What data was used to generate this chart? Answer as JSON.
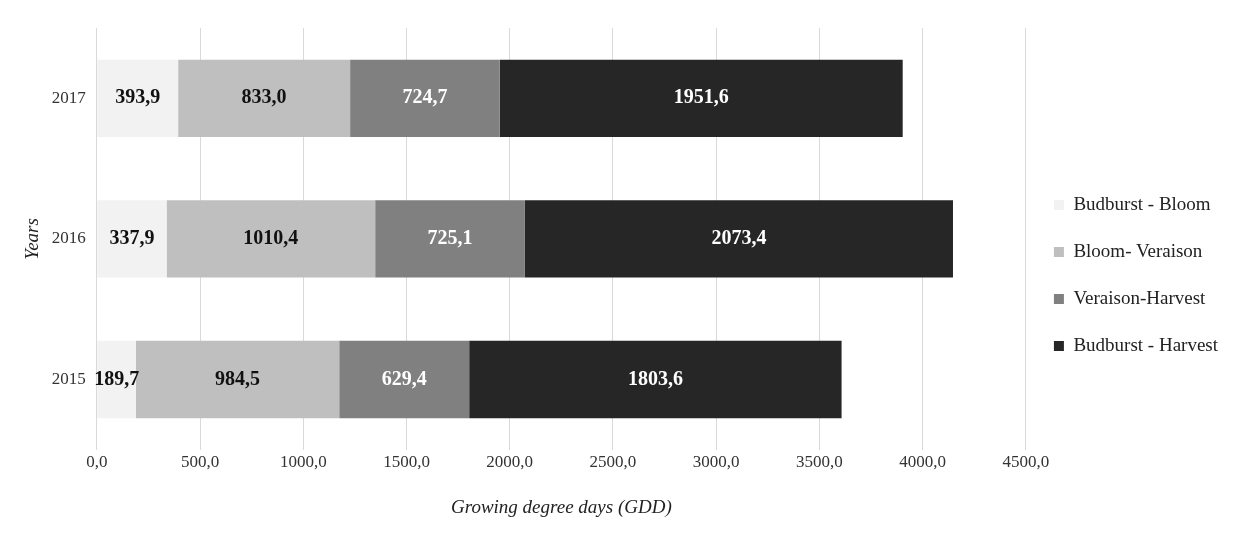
{
  "chart_data": {
    "type": "bar",
    "orientation": "horizontal",
    "stacked": true,
    "categories": [
      "2017",
      "2016",
      "2015"
    ],
    "series": [
      {
        "name": "Budburst - Bloom",
        "color": "#f2f2f2",
        "values": [
          393.9,
          337.9,
          189.7
        ],
        "value_labels": [
          "393,9",
          "337,9",
          "189,7"
        ]
      },
      {
        "name": "Bloom- Veraison",
        "color": "#bfbfbf",
        "values": [
          833.0,
          1010.4,
          984.5
        ],
        "value_labels": [
          "833,0",
          "1010,4",
          "984,5"
        ]
      },
      {
        "name": "Veraison-Harvest",
        "color": "#808080",
        "values": [
          724.7,
          725.1,
          629.4
        ],
        "value_labels": [
          "724,7",
          "725,1",
          "629,4"
        ]
      },
      {
        "name": "Budburst - Harvest",
        "color": "#262626",
        "values": [
          1951.6,
          2073.4,
          1803.6
        ],
        "value_labels": [
          "1951,6",
          "2073,4",
          "1803,6"
        ]
      }
    ],
    "xlim": [
      0,
      4500
    ],
    "xticks": [
      {
        "value": 0,
        "label": "0,0"
      },
      {
        "value": 500,
        "label": "500,0"
      },
      {
        "value": 1000,
        "label": "1000,0"
      },
      {
        "value": 1500,
        "label": "1500,0"
      },
      {
        "value": 2000,
        "label": "2000,0"
      },
      {
        "value": 2500,
        "label": "2500,0"
      },
      {
        "value": 3000,
        "label": "3000,0"
      },
      {
        "value": 3500,
        "label": "3500,0"
      },
      {
        "value": 4000,
        "label": "4000,0"
      },
      {
        "value": 4500,
        "label": "4500,0"
      }
    ],
    "xlabel": "Growing degree days (GDD)",
    "ylabel": "Years",
    "grid": "x",
    "legend": "right"
  }
}
